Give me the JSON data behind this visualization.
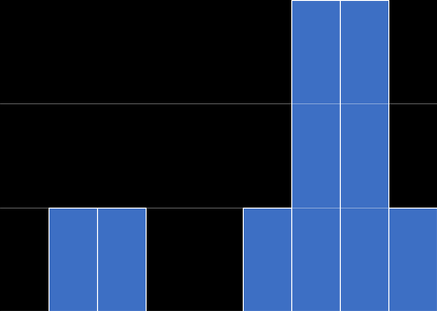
{
  "bin_heights": [
    0,
    1,
    1,
    0,
    0,
    1,
    3,
    3,
    1
  ],
  "bar_color": "#3d6fc4",
  "bar_edgecolor": "#ffffff",
  "background_color": "#000000",
  "ylim": [
    0,
    3
  ],
  "n_bins": 9,
  "figsize": [
    4.86,
    3.46
  ],
  "dpi": 100,
  "grid_color": "#ffffff",
  "grid_alpha": 0.4,
  "grid_linewidth": 0.6
}
